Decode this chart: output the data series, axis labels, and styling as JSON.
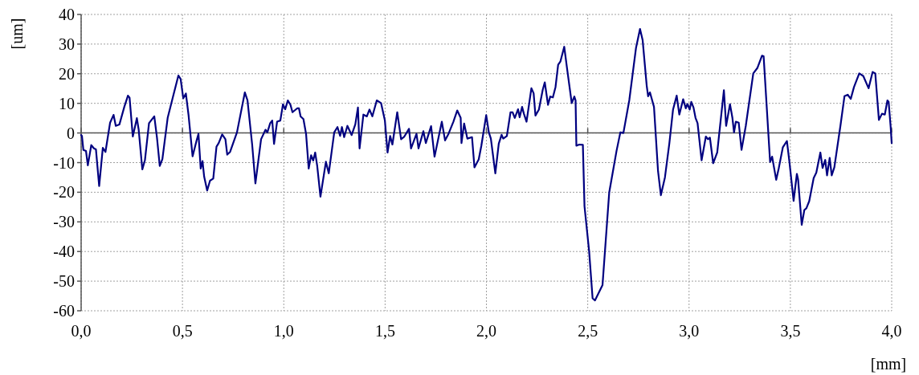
{
  "chart_data": {
    "type": "line",
    "xlabel": "[mm]",
    "ylabel": "[um]",
    "xlim": [
      0,
      4
    ],
    "ylim": [
      -60,
      40
    ],
    "xticks": [
      {
        "value": 0,
        "label": "0,0"
      },
      {
        "value": 0.5,
        "label": "0,5"
      },
      {
        "value": 1,
        "label": "1,0"
      },
      {
        "value": 1.5,
        "label": "1,5"
      },
      {
        "value": 2,
        "label": "2,0"
      },
      {
        "value": 2.5,
        "label": "2,5"
      },
      {
        "value": 3,
        "label": "3,0"
      },
      {
        "value": 3.5,
        "label": "3,5"
      },
      {
        "value": 4,
        "label": "4,0"
      }
    ],
    "yticks": [
      -60,
      -50,
      -40,
      -30,
      -20,
      -10,
      0,
      10,
      20,
      30,
      40
    ],
    "grid": true,
    "marker": "none",
    "line_style": "solid",
    "series": [
      {
        "color": "#000080",
        "x": [
          0,
          0.004,
          0.011,
          0.024,
          0.033,
          0.05,
          0.063,
          0.073,
          0.089,
          0.107,
          0.12,
          0.143,
          0.16,
          0.171,
          0.189,
          0.213,
          0.231,
          0.239,
          0.255,
          0.275,
          0.284,
          0.302,
          0.315,
          0.335,
          0.361,
          0.374,
          0.388,
          0.401,
          0.427,
          0.454,
          0.48,
          0.491,
          0.504,
          0.517,
          0.53,
          0.55,
          0.57,
          0.579,
          0.59,
          0.599,
          0.607,
          0.622,
          0.636,
          0.652,
          0.668,
          0.679,
          0.696,
          0.712,
          0.721,
          0.735,
          0.769,
          0.808,
          0.821,
          0.844,
          0.86,
          0.888,
          0.91,
          0.919,
          0.933,
          0.943,
          0.952,
          0.967,
          0.983,
          0.996,
          1.007,
          1.02,
          1.033,
          1.043,
          1.066,
          1.075,
          1.083,
          1.097,
          1.11,
          1.123,
          1.135,
          1.145,
          1.155,
          1.165,
          1.181,
          1.208,
          1.222,
          1.249,
          1.265,
          1.278,
          1.287,
          1.298,
          1.314,
          1.335,
          1.353,
          1.366,
          1.374,
          1.393,
          1.41,
          1.423,
          1.437,
          1.459,
          1.48,
          1.499,
          1.512,
          1.525,
          1.536,
          1.56,
          1.579,
          1.595,
          1.618,
          1.628,
          1.655,
          1.665,
          1.689,
          1.701,
          1.727,
          1.744,
          1.78,
          1.796,
          1.813,
          1.837,
          1.856,
          1.873,
          1.877,
          1.89,
          1.906,
          1.929,
          1.941,
          1.962,
          1.975,
          1.999,
          2.012,
          2.022,
          2.044,
          2.061,
          2.075,
          2.083,
          2.101,
          2.119,
          2.129,
          2.14,
          2.156,
          2.164,
          2.176,
          2.185,
          2.198,
          2.222,
          2.233,
          2.242,
          2.259,
          2.278,
          2.288,
          2.304,
          2.315,
          2.328,
          2.341,
          2.354,
          2.365,
          2.384,
          2.397,
          2.421,
          2.434,
          2.44,
          2.444,
          2.458,
          2.476,
          2.484,
          2.507,
          2.524,
          2.536,
          2.556,
          2.573,
          2.606,
          2.642,
          2.661,
          2.676,
          2.705,
          2.738,
          2.758,
          2.771,
          2.791,
          2.798,
          2.807,
          2.827,
          2.847,
          2.861,
          2.881,
          2.903,
          2.921,
          2.939,
          2.952,
          2.971,
          2.984,
          2.992,
          3.003,
          3.011,
          3.022,
          3.032,
          3.042,
          3.062,
          3.083,
          3.093,
          3.103,
          3.119,
          3.139,
          3.172,
          3.183,
          3.202,
          3.214,
          3.222,
          3.231,
          3.245,
          3.259,
          3.28,
          3.317,
          3.337,
          3.36,
          3.368,
          3.4,
          3.41,
          3.43,
          3.443,
          3.463,
          3.483,
          3.496,
          3.516,
          3.532,
          3.538,
          3.556,
          3.569,
          3.579,
          3.593,
          3.615,
          3.628,
          3.648,
          3.659,
          3.672,
          3.681,
          3.694,
          3.704,
          3.717,
          3.747,
          3.767,
          3.783,
          3.798,
          3.814,
          3.84,
          3.86,
          3.886,
          3.906,
          3.919,
          3.937,
          3.952,
          3.966,
          3.979,
          3.985,
          3.995,
          4
        ],
        "values": [
          -0.7,
          -1,
          -5.7,
          -6.1,
          -10.9,
          -4.1,
          -5.2,
          -5.5,
          -17.9,
          -5,
          -6.4,
          3.5,
          6.1,
          2.4,
          2.9,
          8.8,
          12.6,
          11.9,
          -1.2,
          5,
          1.1,
          -12.3,
          -9.1,
          3.3,
          5.6,
          -1.4,
          -11.1,
          -8.8,
          5.1,
          12.4,
          19.4,
          18.2,
          11.7,
          13.3,
          6.1,
          -7.9,
          -2.5,
          -0.3,
          -12,
          -9.5,
          -14.7,
          -19.4,
          -16.1,
          -15.4,
          -4.6,
          -3.4,
          -0.5,
          -2.1,
          -7.3,
          -6.4,
          0.2,
          13.7,
          11,
          -3.9,
          -17,
          -2.1,
          1.1,
          0.2,
          3.3,
          4.2,
          -3.7,
          3.8,
          4.2,
          9.7,
          8,
          11,
          9.5,
          7,
          8.3,
          8.3,
          5.6,
          4.7,
          -0.3,
          -12,
          -7.5,
          -9.3,
          -6.6,
          -11.1,
          -21.5,
          -9.7,
          -13.6,
          0.2,
          2,
          -1,
          2,
          -1.4,
          2.4,
          -0.7,
          2.9,
          8.6,
          -5.2,
          6.2,
          5.6,
          7.9,
          5.6,
          11,
          10.1,
          4.2,
          -6.6,
          -1,
          -3.9,
          7,
          -2.1,
          -1.2,
          1.4,
          -5.2,
          -0.3,
          -5.2,
          0.6,
          -3.4,
          2.3,
          -8,
          3.8,
          -2.5,
          -0.3,
          3.8,
          7.6,
          5.1,
          -3.4,
          3.2,
          -1.9,
          -1.4,
          -11.6,
          -8.9,
          -4.3,
          6,
          0.2,
          -1.9,
          -13.6,
          -3.6,
          -0.6,
          -1.9,
          -1,
          7,
          7,
          5.1,
          8,
          5.3,
          8.8,
          6.5,
          3.8,
          15.1,
          13.4,
          5.9,
          7.9,
          14.6,
          17.1,
          9.5,
          12.3,
          12,
          15.5,
          23,
          24.1,
          29.1,
          22.3,
          10.1,
          12.3,
          11,
          -4.3,
          -3.9,
          -4,
          -24.7,
          -40,
          -55.8,
          -56.5,
          -53.7,
          -51.3,
          -20.1,
          -6.1,
          0.2,
          0,
          11,
          28.6,
          35.1,
          31.3,
          16,
          12.4,
          13.7,
          8.8,
          -12.9,
          -21,
          -15,
          -3.4,
          7.9,
          12.6,
          6.2,
          11.4,
          8.3,
          9.8,
          7.9,
          10.5,
          8.6,
          5.1,
          3.3,
          -9.2,
          -1.2,
          -2.1,
          -1.6,
          -10.2,
          -6.6,
          14.4,
          2.4,
          9.7,
          5.1,
          0.2,
          3.8,
          3.5,
          -5.7,
          2.4,
          20.1,
          21.9,
          26.1,
          25.9,
          -9.8,
          -8,
          -15.8,
          -11.8,
          -4.8,
          -2.7,
          -10.2,
          -22.9,
          -13.8,
          -15.6,
          -31,
          -26,
          -25.4,
          -23,
          -15.2,
          -13.4,
          -6.6,
          -11.8,
          -9.1,
          -14.3,
          -8.4,
          -14.3,
          -11.6,
          2.4,
          12.4,
          12.9,
          11.5,
          15.5,
          20.1,
          19.2,
          15.1,
          20.6,
          20.1,
          4.4,
          6.5,
          6.2,
          11,
          10.5,
          2,
          -3.4
        ]
      }
    ]
  }
}
